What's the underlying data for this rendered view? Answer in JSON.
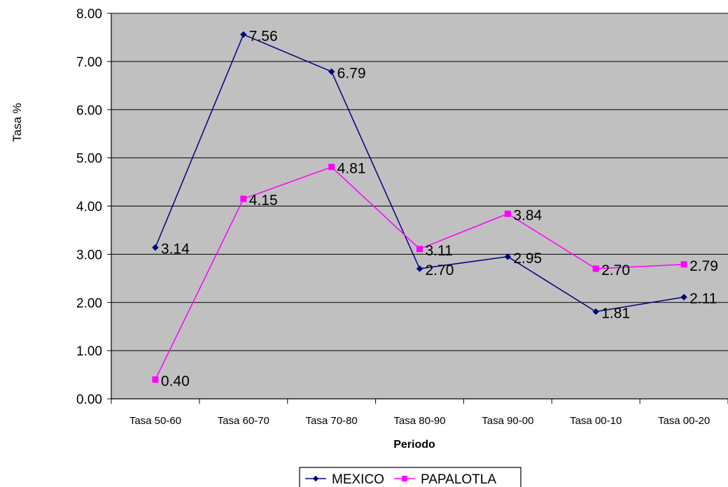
{
  "chart_data": {
    "type": "line",
    "title": "",
    "xlabel": "Periodo",
    "ylabel": "Tasa %",
    "ylim": [
      0,
      8
    ],
    "yticks": [
      "0.00",
      "1.00",
      "2.00",
      "3.00",
      "4.00",
      "5.00",
      "6.00",
      "7.00",
      "8.00"
    ],
    "categories": [
      "Tasa 50-60",
      "Tasa 60-70",
      "Tasa 70-80",
      "Tasa 80-90",
      "Tasa 90-00",
      "Tasa 00-10",
      "Tasa 00-20"
    ],
    "grid": true,
    "legend_position": "bottom",
    "plot_background": "#C0C0C0",
    "series": [
      {
        "name": "MEXICO",
        "color": "#000080",
        "marker": "diamond",
        "values": [
          3.14,
          7.56,
          6.79,
          2.7,
          2.95,
          1.81,
          2.11
        ],
        "labels": [
          "3.14",
          "7.56",
          "6.79",
          "2.70",
          "2.95",
          "1.81",
          "2.11"
        ]
      },
      {
        "name": "PAPALOTLA",
        "color": "#FF00FF",
        "marker": "square",
        "values": [
          0.4,
          4.15,
          4.81,
          3.11,
          3.84,
          2.7,
          2.79
        ],
        "labels": [
          "0.40",
          "4.15",
          "4.81",
          "3.11",
          "3.84",
          "2.70",
          "2.79"
        ]
      }
    ]
  }
}
